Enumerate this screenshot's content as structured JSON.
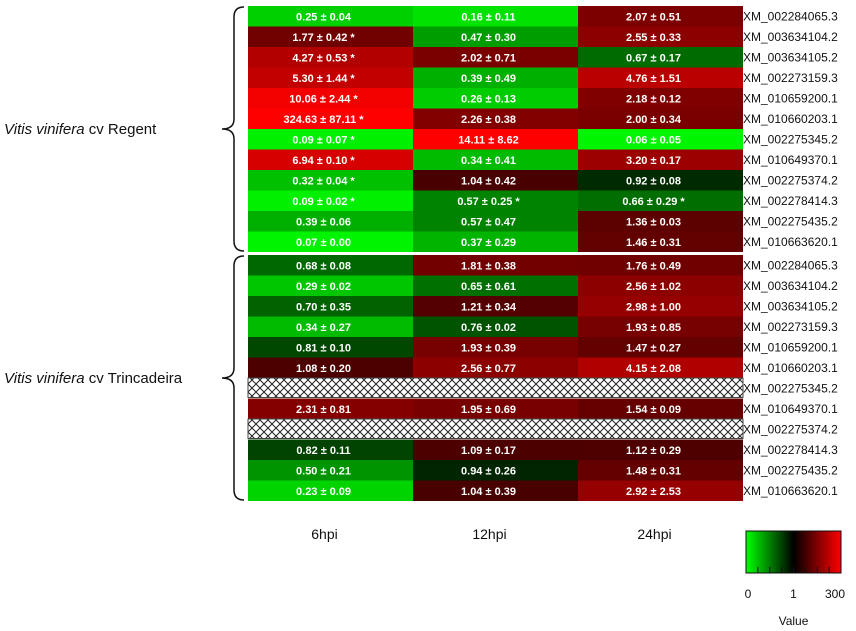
{
  "chart_data": {
    "type": "heatmap",
    "columns": [
      "6hpi",
      "12hpi",
      "24hpi"
    ],
    "groups": [
      {
        "name_italic": "Vitis vinifera",
        "name_rest": "cv Regent",
        "rows": [
          {
            "gene": "XM_002284065.3",
            "cells": [
              {
                "label": "0.25 ± 0.04",
                "v": 0.25
              },
              {
                "label": "0.16 ± 0.11",
                "v": 0.16
              },
              {
                "label": "2.07 ± 0.51",
                "v": 2.07
              }
            ]
          },
          {
            "gene": "XM_003634104.2",
            "cells": [
              {
                "label": "1.77 ± 0.42 *",
                "v": 1.77
              },
              {
                "label": "0.47 ± 0.30",
                "v": 0.47
              },
              {
                "label": "2.55 ± 0.33",
                "v": 2.55
              }
            ]
          },
          {
            "gene": "XM_003634105.2",
            "cells": [
              {
                "label": "4.27 ± 0.53 *",
                "v": 4.27
              },
              {
                "label": "2.02 ± 0.71",
                "v": 2.02
              },
              {
                "label": "0.67 ± 0.17",
                "v": 0.67
              }
            ]
          },
          {
            "gene": "XM_002273159.3",
            "cells": [
              {
                "label": "5.30 ± 1.44 *",
                "v": 5.3
              },
              {
                "label": "0.39 ± 0.49",
                "v": 0.39
              },
              {
                "label": "4.76 ± 1.51",
                "v": 4.76
              }
            ]
          },
          {
            "gene": "XM_010659200.1",
            "cells": [
              {
                "label": "10.06 ± 2.44 *",
                "v": 10.06
              },
              {
                "label": "0.26 ± 0.13",
                "v": 0.26
              },
              {
                "label": "2.18 ± 0.12",
                "v": 2.18
              }
            ]
          },
          {
            "gene": "XM_010660203.1",
            "cells": [
              {
                "label": "324.63 ± 87.11 *",
                "v": 324.63
              },
              {
                "label": "2.26 ± 0.38",
                "v": 2.26
              },
              {
                "label": "2.00 ± 0.34",
                "v": 2.0
              }
            ]
          },
          {
            "gene": "XM_002275345.2",
            "cells": [
              {
                "label": "0.09 ± 0.07 *",
                "v": 0.09
              },
              {
                "label": "14.11 ± 8.62",
                "v": 14.11
              },
              {
                "label": "0.06 ± 0.05",
                "v": 0.06
              }
            ]
          },
          {
            "gene": "XM_010649370.1",
            "cells": [
              {
                "label": "6.94 ± 0.10 *",
                "v": 6.94
              },
              {
                "label": "0.34 ± 0.41",
                "v": 0.34
              },
              {
                "label": "3.20 ± 0.17",
                "v": 3.2
              }
            ]
          },
          {
            "gene": "XM_002275374.2",
            "cells": [
              {
                "label": "0.32 ± 0.04 *",
                "v": 0.32
              },
              {
                "label": "1.04 ± 0.42",
                "v": 1.04
              },
              {
                "label": "0.92 ± 0.08",
                "v": 0.92
              }
            ]
          },
          {
            "gene": "XM_002278414.3",
            "cells": [
              {
                "label": "0.09 ± 0.02 *",
                "v": 0.09
              },
              {
                "label": "0.57 ± 0.25 *",
                "v": 0.57
              },
              {
                "label": "0.66 ± 0.29 *",
                "v": 0.66
              }
            ]
          },
          {
            "gene": "XM_002275435.2",
            "cells": [
              {
                "label": "0.39 ± 0.06",
                "v": 0.39
              },
              {
                "label": "0.57 ± 0.47",
                "v": 0.57
              },
              {
                "label": "1.36 ± 0.03",
                "v": 1.36
              }
            ]
          },
          {
            "gene": "XM_010663620.1",
            "cells": [
              {
                "label": "0.07 ± 0.00",
                "v": 0.07
              },
              {
                "label": "0.37 ± 0.29",
                "v": 0.37
              },
              {
                "label": "1.46 ± 0.31",
                "v": 1.46
              }
            ]
          }
        ]
      },
      {
        "name_italic": "Vitis vinifera",
        "name_rest": "cv Trincadeira",
        "rows": [
          {
            "gene": "XM_002284065.3",
            "cells": [
              {
                "label": "0.68 ± 0.08",
                "v": 0.68
              },
              {
                "label": "1.81 ± 0.38",
                "v": 1.81
              },
              {
                "label": "1.76 ± 0.49",
                "v": 1.76
              }
            ]
          },
          {
            "gene": "XM_003634104.2",
            "cells": [
              {
                "label": "0.29 ± 0.02",
                "v": 0.29
              },
              {
                "label": "0.65 ± 0.61",
                "v": 0.65
              },
              {
                "label": "2.56 ± 1.02",
                "v": 2.56
              }
            ]
          },
          {
            "gene": "XM_003634105.2",
            "cells": [
              {
                "label": "0.70 ± 0.35",
                "v": 0.7
              },
              {
                "label": "1.21 ± 0.34",
                "v": 1.21
              },
              {
                "label": "2.98 ± 1.00",
                "v": 2.98
              }
            ]
          },
          {
            "gene": "XM_002273159.3",
            "cells": [
              {
                "label": "0.34 ± 0.27",
                "v": 0.34
              },
              {
                "label": "0.76 ± 0.02",
                "v": 0.76
              },
              {
                "label": "1.93 ± 0.85",
                "v": 1.93
              }
            ]
          },
          {
            "gene": "XM_010659200.1",
            "cells": [
              {
                "label": "0.81 ± 0.10",
                "v": 0.81
              },
              {
                "label": "1.93 ± 0.39",
                "v": 1.93
              },
              {
                "label": "1.47 ± 0.27",
                "v": 1.47
              }
            ]
          },
          {
            "gene": "XM_010660203.1",
            "cells": [
              {
                "label": "1.08 ± 0.20",
                "v": 1.08
              },
              {
                "label": "2.56 ± 0.77",
                "v": 2.56
              },
              {
                "label": "4.15 ± 2.08",
                "v": 4.15
              }
            ]
          },
          {
            "gene": "XM_002275345.2",
            "cells": null
          },
          {
            "gene": "XM_010649370.1",
            "cells": [
              {
                "label": "2.31 ± 0.81",
                "v": 2.31
              },
              {
                "label": "1.95 ± 0.69",
                "v": 1.95
              },
              {
                "label": "1.54 ± 0.09",
                "v": 1.54
              }
            ]
          },
          {
            "gene": "XM_002275374.2",
            "cells": null
          },
          {
            "gene": "XM_002278414.3",
            "cells": [
              {
                "label": "0.82 ± 0.11",
                "v": 0.82
              },
              {
                "label": "1.09 ± 0.17",
                "v": 1.09
              },
              {
                "label": "1.12 ± 0.29",
                "v": 1.12
              }
            ]
          },
          {
            "gene": "XM_002275435.2",
            "cells": [
              {
                "label": "0.50 ± 0.21",
                "v": 0.5
              },
              {
                "label": "0.94 ± 0.26",
                "v": 0.94
              },
              {
                "label": "1.48 ± 0.31",
                "v": 1.48
              }
            ]
          },
          {
            "gene": "XM_010663620.1",
            "cells": [
              {
                "label": "0.23 ± 0.09",
                "v": 0.23
              },
              {
                "label": "1.04 ± 0.39",
                "v": 1.04
              },
              {
                "label": "2.92 ± 2.53",
                "v": 2.92
              }
            ]
          }
        ]
      }
    ],
    "legend": {
      "title": "Value",
      "ticks": [
        "0",
        "1",
        "300"
      ],
      "colors": {
        "low": "#00ff00",
        "mid": "#000000",
        "high": "#ff0000"
      }
    }
  }
}
